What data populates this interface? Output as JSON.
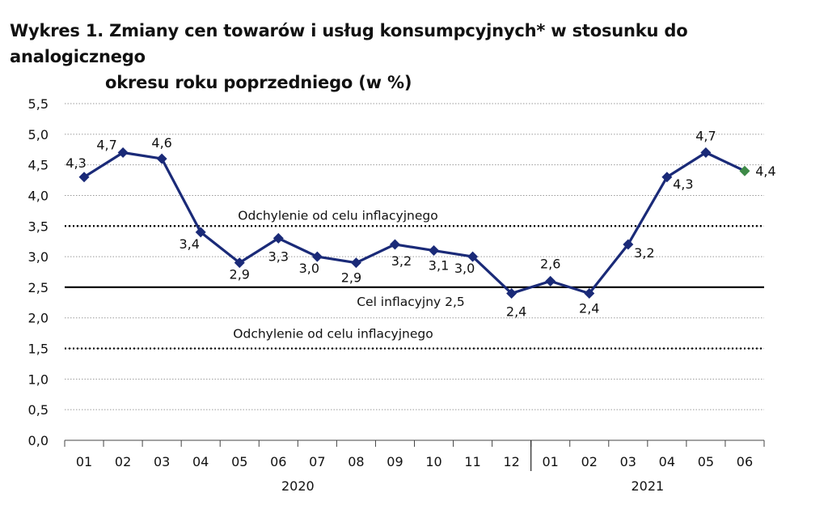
{
  "title_line1": "Wykres 1. Zmiany cen towarów i usług konsumpcyjnych* w stosunku do analogicznego",
  "title_line2": "okresu roku poprzedniego (w %)",
  "chart_data": {
    "type": "line",
    "categories": [
      "01",
      "02",
      "03",
      "04",
      "05",
      "06",
      "07",
      "08",
      "09",
      "10",
      "11",
      "12",
      "01",
      "02",
      "03",
      "04",
      "05",
      "06"
    ],
    "year_groups": [
      {
        "label": "2020",
        "start": 0,
        "end": 11
      },
      {
        "label": "2021",
        "start": 12,
        "end": 17
      }
    ],
    "series": [
      {
        "values": [
          4.3,
          4.7,
          4.6,
          3.4,
          2.9,
          3.3,
          3.0,
          2.9,
          3.2,
          3.1,
          3.0,
          2.4,
          2.6,
          2.4,
          3.2,
          4.3,
          4.7,
          4.4
        ],
        "labels": [
          "4,3",
          "4,7",
          "4,6",
          "3,4",
          "2,9",
          "3,3",
          "3,0",
          "2,9",
          "3,2",
          "3,1",
          "3,0",
          "2,4",
          "2,6",
          "2,4",
          "3,2",
          "4,3",
          "4,7",
          "4,4"
        ],
        "color": "#1a2a78",
        "last_point_color": "#3e8a47"
      }
    ],
    "ylim": [
      0,
      5.5
    ],
    "yticks": [
      "0,0",
      "0,5",
      "1,0",
      "1,5",
      "2,0",
      "2,5",
      "3,0",
      "3,5",
      "4,0",
      "4,5",
      "5,0",
      "5,5"
    ],
    "reference_lines": [
      {
        "value": 3.5,
        "style": "dotted",
        "label": "Odchylenie od celu inflacyjnego"
      },
      {
        "value": 2.5,
        "style": "solid",
        "label": "Cel inflacyjny 2,5"
      },
      {
        "value": 1.5,
        "style": "dotted",
        "label": "Odchylenie od celu inflacyjnego"
      }
    ],
    "grid": true
  }
}
